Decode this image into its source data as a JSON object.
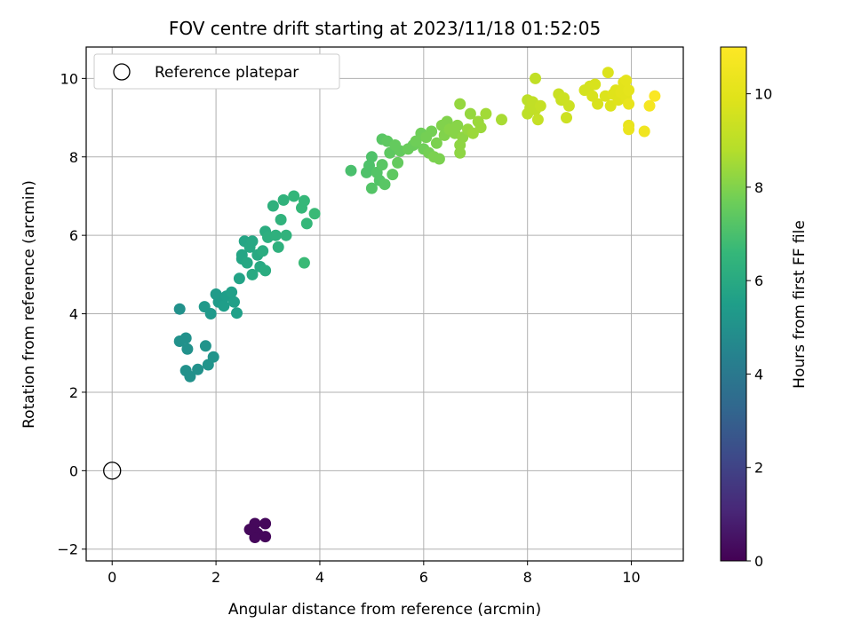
{
  "chart_data": {
    "type": "scatter",
    "title": "FOV centre drift starting at 2023/11/18 01:52:05",
    "xlabel": "Angular distance from reference (arcmin)",
    "ylabel": "Rotation from reference (arcmin)",
    "xlim": [
      -0.5,
      11.0
    ],
    "ylim": [
      -2.3,
      10.8
    ],
    "xticks": [
      0,
      2,
      4,
      6,
      8,
      10
    ],
    "xtick_labels": [
      "0",
      "2",
      "4",
      "6",
      "8",
      "10"
    ],
    "yticks": [
      -2,
      0,
      2,
      4,
      6,
      8,
      10
    ],
    "ytick_labels": [
      "−2",
      "0",
      "2",
      "4",
      "6",
      "8",
      "10"
    ],
    "grid": true,
    "legend": {
      "placement": "top-left",
      "entries": [
        "Reference platepar"
      ]
    },
    "reference_point": {
      "x": 0,
      "y": 0,
      "label": "Reference platepar"
    },
    "colorbar": {
      "label": "Hours from first FF file",
      "range": [
        0,
        11
      ],
      "ticks": [
        0,
        2,
        4,
        6,
        8,
        10
      ],
      "tick_labels": [
        "0",
        "2",
        "4",
        "6",
        "8",
        "10"
      ],
      "colormap": "viridis"
    },
    "series": [
      {
        "points": [
          [
            2.7,
            -1.5,
            0.2
          ],
          [
            2.75,
            -1.35,
            0.2
          ],
          [
            2.95,
            -1.35,
            0.2
          ],
          [
            2.8,
            -1.6,
            0.2
          ],
          [
            2.95,
            -1.68,
            0.2
          ],
          [
            2.75,
            -1.7,
            0.2
          ],
          [
            2.65,
            -1.5,
            0.2
          ],
          [
            1.3,
            4.12,
            5.0
          ],
          [
            1.3,
            3.3,
            5.0
          ],
          [
            1.42,
            3.38,
            5.0
          ],
          [
            1.45,
            3.1,
            5.0
          ],
          [
            1.42,
            2.55,
            5.0
          ],
          [
            1.5,
            2.4,
            5.0
          ],
          [
            1.65,
            2.58,
            5.0
          ],
          [
            1.85,
            2.7,
            5.1
          ],
          [
            1.95,
            2.9,
            5.1
          ],
          [
            1.8,
            3.18,
            5.1
          ],
          [
            1.78,
            4.18,
            5.3
          ],
          [
            1.9,
            4.0,
            5.3
          ],
          [
            2.0,
            4.5,
            5.4
          ],
          [
            2.05,
            4.3,
            5.4
          ],
          [
            2.15,
            4.2,
            5.5
          ],
          [
            2.2,
            4.45,
            5.5
          ],
          [
            2.3,
            4.55,
            5.6
          ],
          [
            2.35,
            4.3,
            5.6
          ],
          [
            2.4,
            4.02,
            5.6
          ],
          [
            2.45,
            4.9,
            5.7
          ],
          [
            2.5,
            5.4,
            5.8
          ],
          [
            2.5,
            5.5,
            5.8
          ],
          [
            2.55,
            5.85,
            5.8
          ],
          [
            2.6,
            5.3,
            5.9
          ],
          [
            2.65,
            5.7,
            5.9
          ],
          [
            2.7,
            5.85,
            5.9
          ],
          [
            2.7,
            5.0,
            6.0
          ],
          [
            2.8,
            5.5,
            6.0
          ],
          [
            2.85,
            5.2,
            6.0
          ],
          [
            2.9,
            5.6,
            6.1
          ],
          [
            2.95,
            6.1,
            6.1
          ],
          [
            2.95,
            5.1,
            6.1
          ],
          [
            3.0,
            5.95,
            6.2
          ],
          [
            3.1,
            6.75,
            6.3
          ],
          [
            3.15,
            6.0,
            6.3
          ],
          [
            3.2,
            5.7,
            6.3
          ],
          [
            3.25,
            6.4,
            6.4
          ],
          [
            3.3,
            6.9,
            6.4
          ],
          [
            3.35,
            6.0,
            6.4
          ],
          [
            3.5,
            7.0,
            6.5
          ],
          [
            3.65,
            6.7,
            6.6
          ],
          [
            3.7,
            6.88,
            6.6
          ],
          [
            3.75,
            6.3,
            6.6
          ],
          [
            3.7,
            5.3,
            6.7
          ],
          [
            3.9,
            6.55,
            6.7
          ],
          [
            4.6,
            7.65,
            7.0
          ],
          [
            4.9,
            7.6,
            7.1
          ],
          [
            4.95,
            7.78,
            7.1
          ],
          [
            5.0,
            8.0,
            7.1
          ],
          [
            5.0,
            7.2,
            7.2
          ],
          [
            5.1,
            7.6,
            7.2
          ],
          [
            5.15,
            7.4,
            7.2
          ],
          [
            5.2,
            7.8,
            7.3
          ],
          [
            5.25,
            7.3,
            7.3
          ],
          [
            5.2,
            8.45,
            7.3
          ],
          [
            5.3,
            8.4,
            7.4
          ],
          [
            5.35,
            8.1,
            7.4
          ],
          [
            5.4,
            7.55,
            7.4
          ],
          [
            5.45,
            8.3,
            7.5
          ],
          [
            5.5,
            7.85,
            7.5
          ],
          [
            5.55,
            8.15,
            7.5
          ],
          [
            5.7,
            8.2,
            7.6
          ],
          [
            5.8,
            8.3,
            7.6
          ],
          [
            5.85,
            8.4,
            7.7
          ],
          [
            5.95,
            8.6,
            7.7
          ],
          [
            6.0,
            8.2,
            7.7
          ],
          [
            6.05,
            8.5,
            7.8
          ],
          [
            6.1,
            8.1,
            7.8
          ],
          [
            6.15,
            8.65,
            7.8
          ],
          [
            6.2,
            8.0,
            7.9
          ],
          [
            6.25,
            8.35,
            7.9
          ],
          [
            6.3,
            7.95,
            7.9
          ],
          [
            6.35,
            8.8,
            8.0
          ],
          [
            6.4,
            8.55,
            8.0
          ],
          [
            6.45,
            8.9,
            8.0
          ],
          [
            6.5,
            8.7,
            8.1
          ],
          [
            6.6,
            8.6,
            8.1
          ],
          [
            6.65,
            8.8,
            8.1
          ],
          [
            6.7,
            8.3,
            8.2
          ],
          [
            6.7,
            8.1,
            8.2
          ],
          [
            6.75,
            8.5,
            8.2
          ],
          [
            6.7,
            9.35,
            8.3
          ],
          [
            6.85,
            8.7,
            8.3
          ],
          [
            6.9,
            9.1,
            8.3
          ],
          [
            6.95,
            8.6,
            8.4
          ],
          [
            7.05,
            8.9,
            8.4
          ],
          [
            7.1,
            8.75,
            8.4
          ],
          [
            7.2,
            9.1,
            8.5
          ],
          [
            7.5,
            8.95,
            8.6
          ],
          [
            8.0,
            9.1,
            9.0
          ],
          [
            8.0,
            9.45,
            9.0
          ],
          [
            8.05,
            9.25,
            9.0
          ],
          [
            8.1,
            9.4,
            9.1
          ],
          [
            8.15,
            10.0,
            9.1
          ],
          [
            8.15,
            9.2,
            9.1
          ],
          [
            8.2,
            8.95,
            9.2
          ],
          [
            8.25,
            9.3,
            9.2
          ],
          [
            8.6,
            9.6,
            9.3
          ],
          [
            8.65,
            9.45,
            9.3
          ],
          [
            8.7,
            9.5,
            9.4
          ],
          [
            8.75,
            9.0,
            9.4
          ],
          [
            8.8,
            9.3,
            9.4
          ],
          [
            9.1,
            9.7,
            9.6
          ],
          [
            9.2,
            9.8,
            9.6
          ],
          [
            9.25,
            9.55,
            9.7
          ],
          [
            9.3,
            9.85,
            9.7
          ],
          [
            9.35,
            9.35,
            9.7
          ],
          [
            9.5,
            9.55,
            9.8
          ],
          [
            9.55,
            10.15,
            9.8
          ],
          [
            9.6,
            9.3,
            9.8
          ],
          [
            9.65,
            9.6,
            9.9
          ],
          [
            9.7,
            9.7,
            9.9
          ],
          [
            9.75,
            9.45,
            9.9
          ],
          [
            9.8,
            9.65,
            10.0
          ],
          [
            9.85,
            9.9,
            10.0
          ],
          [
            9.9,
            9.5,
            10.0
          ],
          [
            9.95,
            9.7,
            10.1
          ],
          [
            9.9,
            9.95,
            10.1
          ],
          [
            9.95,
            9.35,
            10.2
          ],
          [
            9.95,
            8.8,
            10.2
          ],
          [
            9.95,
            8.7,
            10.3
          ],
          [
            10.25,
            8.65,
            10.5
          ],
          [
            10.35,
            9.3,
            10.7
          ],
          [
            10.45,
            9.55,
            10.9
          ]
        ]
      }
    ]
  }
}
